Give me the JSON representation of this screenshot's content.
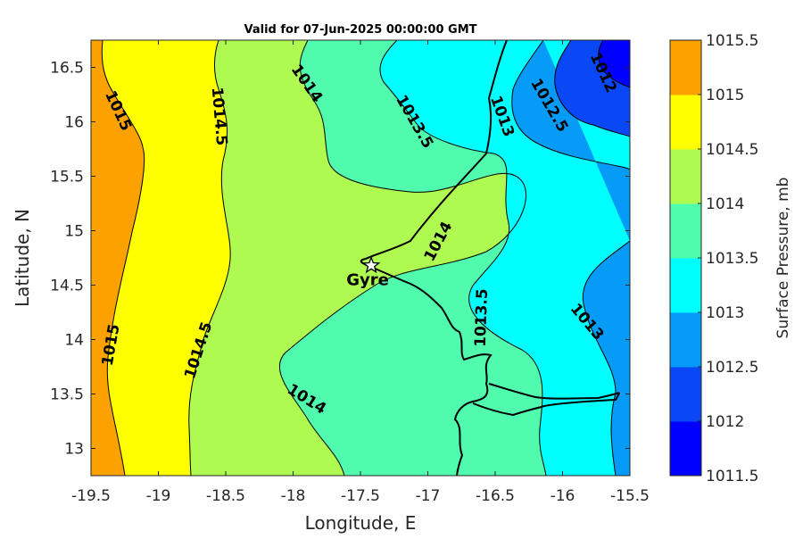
{
  "title": "Valid for 07-Jun-2025 00:00:00 GMT",
  "x_axis": {
    "label": "Longitude, E",
    "range": [
      -19.5,
      -15.5
    ],
    "ticks": [
      "-19.5",
      "-19",
      "-18.5",
      "-18",
      "-17.5",
      "-17",
      "-16.5",
      "-16",
      "-15.5"
    ],
    "tick_values": [
      -19.5,
      -19,
      -18.5,
      -18,
      -17.5,
      -17,
      -16.5,
      -16,
      -15.5
    ]
  },
  "y_axis": {
    "label": "Latitude, N",
    "range": [
      12.75,
      16.75
    ],
    "ticks": [
      "13",
      "13.5",
      "14",
      "14.5",
      "15",
      "15.5",
      "16",
      "16.5"
    ],
    "tick_values": [
      13,
      13.5,
      14,
      14.5,
      15,
      15.5,
      16,
      16.5
    ]
  },
  "colorbar": {
    "label": "Surface Pressure, mb",
    "levels": [
      1011.5,
      1012,
      1012.5,
      1013,
      1013.5,
      1014,
      1014.5,
      1015,
      1015.5
    ],
    "tick_labels": [
      "1011.5",
      "1012",
      "1012.5",
      "1013",
      "1013.5",
      "1014",
      "1014.5",
      "1015",
      "1015.5"
    ],
    "colors": [
      "#0000ff",
      "#0b48f5",
      "#069bf7",
      "#00ffff",
      "#50fbae",
      "#aefa50",
      "#ffff00",
      "#fba200",
      "#ff5500"
    ]
  },
  "marker": {
    "name": "Gyre",
    "lon": -17.42,
    "lat": 14.68
  },
  "contour_labels": [
    {
      "text": "1015",
      "lon": -19.3,
      "lat": 16.1,
      "angle": 65
    },
    {
      "text": "1014.5",
      "lon": -18.55,
      "lat": 16.05,
      "angle": 85
    },
    {
      "text": "1014",
      "lon": -17.9,
      "lat": 16.35,
      "angle": 55
    },
    {
      "text": "1013.5",
      "lon": -17.1,
      "lat": 16.0,
      "angle": 60
    },
    {
      "text": "1013",
      "lon": -16.45,
      "lat": 16.05,
      "angle": 70
    },
    {
      "text": "1012.5",
      "lon": -16.1,
      "lat": 16.15,
      "angle": 60
    },
    {
      "text": "1012",
      "lon": -15.7,
      "lat": 16.45,
      "angle": 65
    },
    {
      "text": "1014",
      "lon": -16.92,
      "lat": 14.9,
      "angle": -62
    },
    {
      "text": "1013.5",
      "lon": -16.6,
      "lat": 14.2,
      "angle": -88
    },
    {
      "text": "1013",
      "lon": -15.82,
      "lat": 14.16,
      "angle": 50
    },
    {
      "text": "1015",
      "lon": -19.35,
      "lat": 13.95,
      "angle": -80
    },
    {
      "text": "1014.5",
      "lon": -18.7,
      "lat": 13.9,
      "angle": -72
    },
    {
      "text": "1014",
      "lon": -17.9,
      "lat": 13.45,
      "angle": 32
    }
  ]
}
